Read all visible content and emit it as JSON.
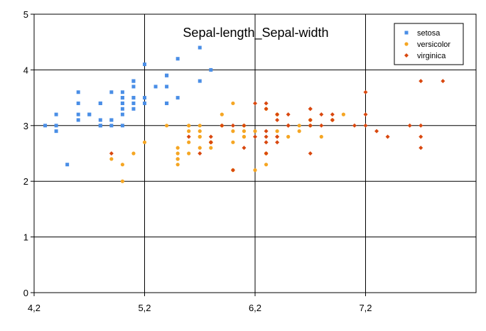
{
  "chart_data": {
    "type": "scatter",
    "title": "Sepal-length_Sepal-width",
    "xlabel": "",
    "ylabel": "",
    "xlim": [
      4.2,
      8.2
    ],
    "ylim": [
      0,
      5
    ],
    "x_ticks": [
      4.2,
      5.2,
      6.2,
      7.2
    ],
    "x_tick_labels": [
      "4,2",
      "5,2",
      "6,2",
      "7,2"
    ],
    "y_ticks": [
      0,
      1,
      2,
      3,
      4,
      5
    ],
    "y_tick_labels": [
      "0",
      "1",
      "2",
      "3",
      "4",
      "5"
    ],
    "grid": true,
    "legend_position": "top-right",
    "series": [
      {
        "name": "setosa",
        "color": "#4a8ee6",
        "marker": "square",
        "points": [
          [
            5.1,
            3.5
          ],
          [
            4.9,
            3.0
          ],
          [
            4.7,
            3.2
          ],
          [
            4.6,
            3.1
          ],
          [
            5.0,
            3.6
          ],
          [
            5.4,
            3.9
          ],
          [
            4.6,
            3.4
          ],
          [
            5.0,
            3.4
          ],
          [
            4.4,
            2.9
          ],
          [
            4.9,
            3.1
          ],
          [
            5.4,
            3.7
          ],
          [
            4.8,
            3.4
          ],
          [
            4.8,
            3.0
          ],
          [
            4.3,
            3.0
          ],
          [
            5.8,
            4.0
          ],
          [
            5.7,
            4.4
          ],
          [
            5.4,
            3.9
          ],
          [
            5.1,
            3.5
          ],
          [
            5.7,
            3.8
          ],
          [
            5.1,
            3.8
          ],
          [
            5.4,
            3.4
          ],
          [
            5.1,
            3.7
          ],
          [
            4.6,
            3.6
          ],
          [
            5.1,
            3.3
          ],
          [
            4.8,
            3.4
          ],
          [
            5.0,
            3.0
          ],
          [
            5.0,
            3.4
          ],
          [
            5.2,
            3.5
          ],
          [
            5.2,
            3.4
          ],
          [
            4.7,
            3.2
          ],
          [
            4.8,
            3.1
          ],
          [
            5.4,
            3.4
          ],
          [
            5.2,
            4.1
          ],
          [
            5.5,
            4.2
          ],
          [
            4.9,
            3.1
          ],
          [
            5.0,
            3.2
          ],
          [
            5.5,
            3.5
          ],
          [
            4.9,
            3.6
          ],
          [
            4.4,
            3.0
          ],
          [
            5.1,
            3.4
          ],
          [
            5.0,
            3.5
          ],
          [
            4.5,
            2.3
          ],
          [
            4.4,
            3.2
          ],
          [
            5.0,
            3.5
          ],
          [
            5.1,
            3.8
          ],
          [
            4.8,
            3.0
          ],
          [
            5.1,
            3.8
          ],
          [
            4.6,
            3.2
          ],
          [
            5.3,
            3.7
          ],
          [
            5.0,
            3.3
          ]
        ]
      },
      {
        "name": "versicolor",
        "color": "#f5a623",
        "marker": "circle",
        "points": [
          [
            7.0,
            3.2
          ],
          [
            6.4,
            3.2
          ],
          [
            6.9,
            3.1
          ],
          [
            5.5,
            2.3
          ],
          [
            6.5,
            2.8
          ],
          [
            5.7,
            2.8
          ],
          [
            6.3,
            3.3
          ],
          [
            4.9,
            2.4
          ],
          [
            6.6,
            2.9
          ],
          [
            5.2,
            2.7
          ],
          [
            5.0,
            2.0
          ],
          [
            5.9,
            3.0
          ],
          [
            6.0,
            2.2
          ],
          [
            6.1,
            2.9
          ],
          [
            5.6,
            2.9
          ],
          [
            6.7,
            3.1
          ],
          [
            5.6,
            3.0
          ],
          [
            5.8,
            2.7
          ],
          [
            6.2,
            2.2
          ],
          [
            5.6,
            2.5
          ],
          [
            5.9,
            3.2
          ],
          [
            6.1,
            2.8
          ],
          [
            6.3,
            2.5
          ],
          [
            6.1,
            2.8
          ],
          [
            6.4,
            2.9
          ],
          [
            6.6,
            3.0
          ],
          [
            6.8,
            2.8
          ],
          [
            6.7,
            3.0
          ],
          [
            6.0,
            2.9
          ],
          [
            5.7,
            2.6
          ],
          [
            5.5,
            2.4
          ],
          [
            5.5,
            2.4
          ],
          [
            5.8,
            2.7
          ],
          [
            6.0,
            2.7
          ],
          [
            5.4,
            3.0
          ],
          [
            6.0,
            3.4
          ],
          [
            6.7,
            3.1
          ],
          [
            6.3,
            2.3
          ],
          [
            5.6,
            3.0
          ],
          [
            5.5,
            2.5
          ],
          [
            5.5,
            2.6
          ],
          [
            6.1,
            3.0
          ],
          [
            5.8,
            2.6
          ],
          [
            5.0,
            2.3
          ],
          [
            5.6,
            2.7
          ],
          [
            5.7,
            3.0
          ],
          [
            5.7,
            2.9
          ],
          [
            6.2,
            2.9
          ],
          [
            5.1,
            2.5
          ],
          [
            5.7,
            2.8
          ]
        ]
      },
      {
        "name": "virginica",
        "color": "#d9480f",
        "marker": "diamond",
        "points": [
          [
            6.3,
            3.3
          ],
          [
            5.8,
            2.7
          ],
          [
            7.1,
            3.0
          ],
          [
            6.3,
            2.9
          ],
          [
            6.5,
            3.0
          ],
          [
            7.6,
            3.0
          ],
          [
            4.9,
            2.5
          ],
          [
            7.3,
            2.9
          ],
          [
            6.7,
            2.5
          ],
          [
            7.2,
            3.6
          ],
          [
            6.5,
            3.2
          ],
          [
            6.4,
            2.7
          ],
          [
            6.8,
            3.0
          ],
          [
            5.7,
            2.5
          ],
          [
            5.8,
            2.8
          ],
          [
            6.4,
            3.2
          ],
          [
            6.5,
            3.0
          ],
          [
            7.7,
            3.8
          ],
          [
            7.7,
            2.6
          ],
          [
            6.0,
            2.2
          ],
          [
            6.9,
            3.2
          ],
          [
            5.6,
            2.8
          ],
          [
            7.7,
            2.8
          ],
          [
            6.3,
            2.7
          ],
          [
            6.7,
            3.3
          ],
          [
            7.2,
            3.2
          ],
          [
            6.2,
            2.8
          ],
          [
            6.1,
            3.0
          ],
          [
            6.4,
            2.8
          ],
          [
            7.2,
            3.0
          ],
          [
            7.4,
            2.8
          ],
          [
            7.9,
            3.8
          ],
          [
            6.4,
            2.8
          ],
          [
            6.3,
            2.8
          ],
          [
            6.1,
            2.6
          ],
          [
            7.7,
            3.0
          ],
          [
            6.3,
            3.4
          ],
          [
            6.4,
            3.1
          ],
          [
            6.0,
            3.0
          ],
          [
            6.9,
            3.1
          ],
          [
            6.7,
            3.1
          ],
          [
            6.9,
            3.1
          ],
          [
            5.8,
            2.7
          ],
          [
            6.8,
            3.2
          ],
          [
            6.7,
            3.3
          ],
          [
            6.7,
            3.0
          ],
          [
            6.3,
            2.5
          ],
          [
            6.5,
            3.0
          ],
          [
            6.2,
            3.4
          ],
          [
            5.9,
            3.0
          ]
        ]
      }
    ]
  }
}
